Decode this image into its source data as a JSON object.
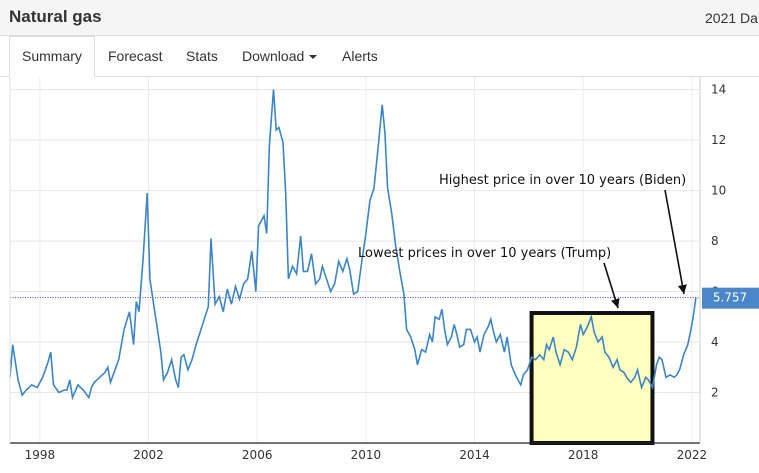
{
  "header": {
    "title": "Natural gas",
    "right_text": "2021 Da"
  },
  "tabs": [
    {
      "label": "Summary",
      "active": true
    },
    {
      "label": "Forecast",
      "active": false
    },
    {
      "label": "Stats",
      "active": false
    },
    {
      "label": "Download",
      "active": false,
      "dropdown": true
    },
    {
      "label": "Alerts",
      "active": false
    }
  ],
  "colors": {
    "line": "#3d85c6",
    "current_badge": "#4a86c8",
    "highlight_fill": "#ffffc0",
    "highlight_border": "#111111"
  },
  "chart_data": {
    "type": "line",
    "title": "",
    "xlabel": "",
    "ylabel": "",
    "x_ticks": [
      "1998",
      "2002",
      "2006",
      "2010",
      "2014",
      "2018",
      "2022"
    ],
    "y_ticks": [
      "2",
      "4",
      "6",
      "8",
      "10",
      "12",
      "14"
    ],
    "xlim": [
      1996.9,
      2022.3
    ],
    "ylim": [
      0,
      14.5
    ],
    "grid": true,
    "current_value": "5.757",
    "series": [
      {
        "values": [
          [
            1996.9,
            2.6
          ],
          [
            1997.0,
            3.9
          ],
          [
            1997.2,
            2.5
          ],
          [
            1997.35,
            1.9
          ],
          [
            1997.5,
            2.1
          ],
          [
            1997.7,
            2.3
          ],
          [
            1997.9,
            2.2
          ],
          [
            1998.1,
            2.6
          ],
          [
            1998.3,
            3.2
          ],
          [
            1998.4,
            3.6
          ],
          [
            1998.5,
            2.3
          ],
          [
            1998.7,
            2.0
          ],
          [
            1998.9,
            2.1
          ],
          [
            1999.0,
            2.1
          ],
          [
            1999.1,
            2.5
          ],
          [
            1999.2,
            1.8
          ],
          [
            1999.4,
            2.3
          ],
          [
            1999.6,
            2.1
          ],
          [
            1999.8,
            1.8
          ],
          [
            1999.9,
            2.2
          ],
          [
            2000.0,
            2.4
          ],
          [
            2000.2,
            2.6
          ],
          [
            2000.4,
            2.8
          ],
          [
            2000.5,
            3.0
          ],
          [
            2000.6,
            2.4
          ],
          [
            2000.8,
            3.0
          ],
          [
            2000.9,
            3.3
          ],
          [
            2001.1,
            4.5
          ],
          [
            2001.3,
            5.2
          ],
          [
            2001.45,
            3.9
          ],
          [
            2001.55,
            5.6
          ],
          [
            2001.65,
            5.2
          ],
          [
            2001.8,
            7.3
          ],
          [
            2001.95,
            9.9
          ],
          [
            2002.05,
            6.5
          ],
          [
            2002.2,
            5.4
          ],
          [
            2002.3,
            4.7
          ],
          [
            2002.45,
            3.6
          ],
          [
            2002.55,
            2.5
          ],
          [
            2002.7,
            2.8
          ],
          [
            2002.85,
            3.3
          ],
          [
            2003.0,
            2.5
          ],
          [
            2003.1,
            2.2
          ],
          [
            2003.2,
            3.4
          ],
          [
            2003.3,
            3.5
          ],
          [
            2003.45,
            2.9
          ],
          [
            2003.6,
            3.3
          ],
          [
            2003.75,
            3.9
          ],
          [
            2003.9,
            4.4
          ],
          [
            2004.05,
            4.9
          ],
          [
            2004.2,
            5.4
          ],
          [
            2004.3,
            8.1
          ],
          [
            2004.45,
            5.5
          ],
          [
            2004.6,
            5.8
          ],
          [
            2004.75,
            5.2
          ],
          [
            2004.9,
            6.1
          ],
          [
            2005.05,
            5.5
          ],
          [
            2005.2,
            6.2
          ],
          [
            2005.35,
            5.7
          ],
          [
            2005.5,
            6.3
          ],
          [
            2005.65,
            6.5
          ],
          [
            2005.8,
            7.6
          ],
          [
            2005.95,
            6.0
          ],
          [
            2006.05,
            8.6
          ],
          [
            2006.25,
            9.0
          ],
          [
            2006.35,
            8.3
          ],
          [
            2006.45,
            11.8
          ],
          [
            2006.6,
            14.0
          ],
          [
            2006.7,
            12.4
          ],
          [
            2006.8,
            12.5
          ],
          [
            2006.95,
            11.9
          ],
          [
            2007.05,
            9.9
          ],
          [
            2007.15,
            6.5
          ],
          [
            2007.3,
            7.0
          ],
          [
            2007.45,
            6.7
          ],
          [
            2007.6,
            8.2
          ],
          [
            2007.7,
            6.8
          ],
          [
            2007.85,
            6.8
          ],
          [
            2008.0,
            7.5
          ],
          [
            2008.15,
            6.3
          ],
          [
            2008.3,
            6.5
          ],
          [
            2008.4,
            7.0
          ],
          [
            2008.55,
            6.5
          ],
          [
            2008.7,
            6.0
          ],
          [
            2008.85,
            6.3
          ],
          [
            2009.0,
            7.2
          ],
          [
            2009.15,
            6.8
          ],
          [
            2009.3,
            7.3
          ],
          [
            2009.4,
            6.9
          ],
          [
            2009.55,
            5.9
          ],
          [
            2009.7,
            6.0
          ],
          [
            2009.85,
            7.2
          ],
          [
            2010.0,
            8.3
          ],
          [
            2010.15,
            9.6
          ],
          [
            2010.3,
            10.1
          ],
          [
            2010.45,
            11.7
          ],
          [
            2010.6,
            13.4
          ],
          [
            2010.7,
            12.3
          ],
          [
            2010.8,
            10.1
          ],
          [
            2010.95,
            9.1
          ],
          [
            2011.1,
            7.8
          ],
          [
            2011.25,
            6.8
          ],
          [
            2011.4,
            5.9
          ],
          [
            2011.5,
            4.5
          ],
          [
            2011.65,
            4.2
          ],
          [
            2011.8,
            3.7
          ],
          [
            2011.9,
            3.1
          ],
          [
            2012.05,
            3.7
          ],
          [
            2012.2,
            3.6
          ],
          [
            2012.35,
            4.3
          ],
          [
            2012.45,
            4.0
          ],
          [
            2012.55,
            5.0
          ],
          [
            2012.7,
            4.9
          ],
          [
            2012.8,
            5.3
          ],
          [
            2012.9,
            4.5
          ],
          [
            2013.0,
            3.9
          ],
          [
            2013.15,
            4.2
          ],
          [
            2013.25,
            4.7
          ],
          [
            2013.35,
            4.3
          ],
          [
            2013.45,
            3.8
          ],
          [
            2013.6,
            3.9
          ],
          [
            2013.7,
            4.5
          ],
          [
            2013.85,
            4.5
          ],
          [
            2014.0,
            4.0
          ],
          [
            2014.1,
            4.2
          ],
          [
            2014.2,
            3.6
          ],
          [
            2014.35,
            4.3
          ],
          [
            2014.5,
            4.6
          ],
          [
            2014.6,
            4.9
          ],
          [
            2014.7,
            4.4
          ],
          [
            2014.8,
            4.0
          ],
          [
            2014.95,
            4.3
          ],
          [
            2015.1,
            3.6
          ],
          [
            2015.2,
            4.2
          ],
          [
            2015.35,
            3.1
          ],
          [
            2015.5,
            2.7
          ],
          [
            2015.6,
            2.5
          ],
          [
            2015.7,
            2.3
          ],
          [
            2015.8,
            2.7
          ],
          [
            2015.95,
            2.9
          ],
          [
            2016.1,
            3.4
          ],
          [
            2016.25,
            3.3
          ],
          [
            2016.4,
            3.5
          ],
          [
            2016.55,
            3.3
          ],
          [
            2016.65,
            3.9
          ],
          [
            2016.75,
            3.7
          ],
          [
            2016.9,
            4.2
          ],
          [
            2017.0,
            3.6
          ],
          [
            2017.15,
            3.1
          ],
          [
            2017.3,
            3.7
          ],
          [
            2017.45,
            3.6
          ],
          [
            2017.6,
            3.3
          ],
          [
            2017.75,
            3.8
          ],
          [
            2017.9,
            4.7
          ],
          [
            2018.0,
            4.3
          ],
          [
            2018.15,
            4.6
          ],
          [
            2018.3,
            5.0
          ],
          [
            2018.4,
            4.4
          ],
          [
            2018.55,
            4.0
          ],
          [
            2018.7,
            4.2
          ],
          [
            2018.8,
            3.6
          ],
          [
            2018.95,
            3.4
          ],
          [
            2019.1,
            3.0
          ],
          [
            2019.25,
            3.3
          ],
          [
            2019.35,
            2.9
          ],
          [
            2019.5,
            2.8
          ],
          [
            2019.6,
            2.6
          ],
          [
            2019.75,
            2.4
          ],
          [
            2019.9,
            2.6
          ],
          [
            2020.0,
            2.9
          ],
          [
            2020.15,
            2.2
          ],
          [
            2020.3,
            2.6
          ],
          [
            2020.4,
            2.5
          ],
          [
            2020.55,
            2.2
          ],
          [
            2020.7,
            3.1
          ],
          [
            2020.8,
            3.4
          ],
          [
            2020.9,
            3.3
          ],
          [
            2021.05,
            2.6
          ],
          [
            2021.2,
            2.7
          ],
          [
            2021.35,
            2.6
          ],
          [
            2021.45,
            2.7
          ],
          [
            2021.55,
            2.9
          ],
          [
            2021.7,
            3.5
          ],
          [
            2021.85,
            3.9
          ],
          [
            2021.95,
            4.4
          ],
          [
            2022.05,
            5.0
          ],
          [
            2022.15,
            5.76
          ]
        ]
      }
    ],
    "annotations": [
      {
        "text": "Highest price in over 10 years (Biden)"
      },
      {
        "text": "Lowest prices in over 10 years (Trump)"
      }
    ]
  }
}
